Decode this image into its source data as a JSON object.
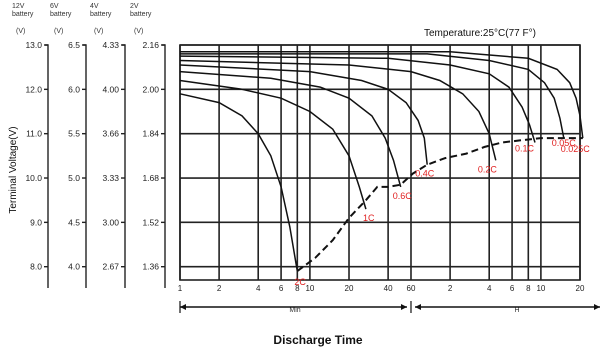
{
  "chart_data": {
    "type": "line",
    "title": "Temperature:25°C(77 F°)",
    "ylabel": "Terminal Voltage(V)",
    "xlabel": "Discharge Time",
    "x_units": [
      "Min",
      "H"
    ],
    "x_scale": "log",
    "x_unit_minutes": "min",
    "xlim": [
      1,
      1200
    ],
    "x_ticks": [
      {
        "label": "1",
        "min": 1
      },
      {
        "label": "2",
        "min": 2
      },
      {
        "label": "4",
        "min": 4
      },
      {
        "label": "6",
        "min": 6
      },
      {
        "label": "8",
        "min": 8
      },
      {
        "label": "10",
        "min": 10
      },
      {
        "label": "20",
        "min": 20
      },
      {
        "label": "40",
        "min": 40
      },
      {
        "label": "60",
        "min": 60
      },
      {
        "label": "2",
        "min": 120
      },
      {
        "label": "4",
        "min": 240
      },
      {
        "label": "6",
        "min": 360
      },
      {
        "label": "8",
        "min": 480
      },
      {
        "label": "10",
        "min": 600
      },
      {
        "label": "20",
        "min": 1200
      }
    ],
    "ylim": [
      7.7,
      13.0
    ],
    "y_scales": [
      {
        "header": "12V battery",
        "unit": "(V)",
        "ticks": [
          "13.0",
          "12.0",
          "11.0",
          "10.0",
          "9.0",
          "8.0"
        ]
      },
      {
        "header": "6V battery",
        "unit": "(V)",
        "ticks": [
          "6.5",
          "6.0",
          "5.5",
          "5.0",
          "4.5",
          "4.0"
        ]
      },
      {
        "header": "4V battery",
        "unit": "(V)",
        "ticks": [
          "4.33",
          "4.00",
          "3.66",
          "3.33",
          "3.00",
          "2.67"
        ]
      },
      {
        "header": "2V battery",
        "unit": "(V)",
        "ticks": [
          "2.16",
          "2.00",
          "1.84",
          "1.68",
          "1.52",
          "1.36"
        ]
      }
    ],
    "y_tick_values": [
      13.0,
      12.0,
      11.0,
      10.0,
      9.0,
      8.0
    ],
    "series": [
      {
        "name": "2C",
        "x": [
          1,
          2,
          3,
          4,
          5,
          6,
          7,
          8
        ],
        "y": [
          11.9,
          11.7,
          11.4,
          11.0,
          10.5,
          9.8,
          8.9,
          7.9
        ]
      },
      {
        "name": "1C",
        "x": [
          1,
          3,
          6,
          10,
          15,
          20,
          24,
          27
        ],
        "y": [
          12.2,
          12.0,
          11.8,
          11.5,
          11.1,
          10.5,
          9.8,
          9.3
        ]
      },
      {
        "name": "0.6C",
        "x": [
          1,
          5,
          12,
          20,
          30,
          38,
          44,
          50
        ],
        "y": [
          12.4,
          12.25,
          12.05,
          11.8,
          11.4,
          10.9,
          10.4,
          9.8
        ]
      },
      {
        "name": "0.4C",
        "x": [
          1,
          10,
          25,
          40,
          55,
          68,
          76,
          80
        ],
        "y": [
          12.55,
          12.4,
          12.2,
          12.0,
          11.7,
          11.3,
          10.9,
          10.3
        ]
      },
      {
        "name": "0.2C",
        "x": [
          1,
          20,
          60,
          100,
          150,
          200,
          240,
          270
        ],
        "y": [
          12.65,
          12.55,
          12.4,
          12.2,
          11.9,
          11.5,
          11.0,
          10.4
        ]
      },
      {
        "name": "0.1C",
        "x": [
          1,
          40,
          120,
          240,
          340,
          430,
          490,
          540
        ],
        "y": [
          12.75,
          12.7,
          12.55,
          12.35,
          12.05,
          11.6,
          11.2,
          10.8
        ]
      },
      {
        "name": "0.05C",
        "x": [
          1,
          80,
          240,
          480,
          640,
          760,
          840,
          900
        ],
        "y": [
          12.8,
          12.8,
          12.65,
          12.45,
          12.15,
          11.8,
          11.35,
          10.9
        ]
      },
      {
        "name": "0.025C",
        "x": [
          1,
          120,
          480,
          800,
          1000,
          1120,
          1200,
          1260
        ],
        "y": [
          12.85,
          12.85,
          12.7,
          12.45,
          12.15,
          11.8,
          11.4,
          10.9
        ]
      }
    ],
    "cutoff_line": {
      "x": [
        8,
        11,
        15,
        20,
        27,
        33,
        40,
        50,
        62,
        80,
        110,
        160,
        220,
        300,
        420,
        600,
        900,
        1260
      ],
      "y": [
        7.9,
        8.2,
        8.6,
        9.1,
        9.5,
        9.8,
        9.8,
        9.85,
        10.1,
        10.3,
        10.45,
        10.55,
        10.7,
        10.8,
        10.85,
        10.9,
        10.9,
        10.9
      ]
    },
    "curve_labels": [
      {
        "text": "2C",
        "series": "2C"
      },
      {
        "text": "1C",
        "series": "1C"
      },
      {
        "text": "0.6C",
        "series": "0.6C"
      },
      {
        "text": "0.4C",
        "series": "0.4C"
      },
      {
        "text": "0.2C",
        "series": "0.2C"
      },
      {
        "text": "0.05C",
        "series": "0.05C"
      },
      {
        "text": "0.1C",
        "series": "0.1C"
      },
      {
        "text": "0.025C",
        "series": "0.025C"
      }
    ],
    "grid": true
  },
  "colors": {
    "line": "#111111",
    "label_red": "#e02020",
    "grid": "#222222"
  }
}
